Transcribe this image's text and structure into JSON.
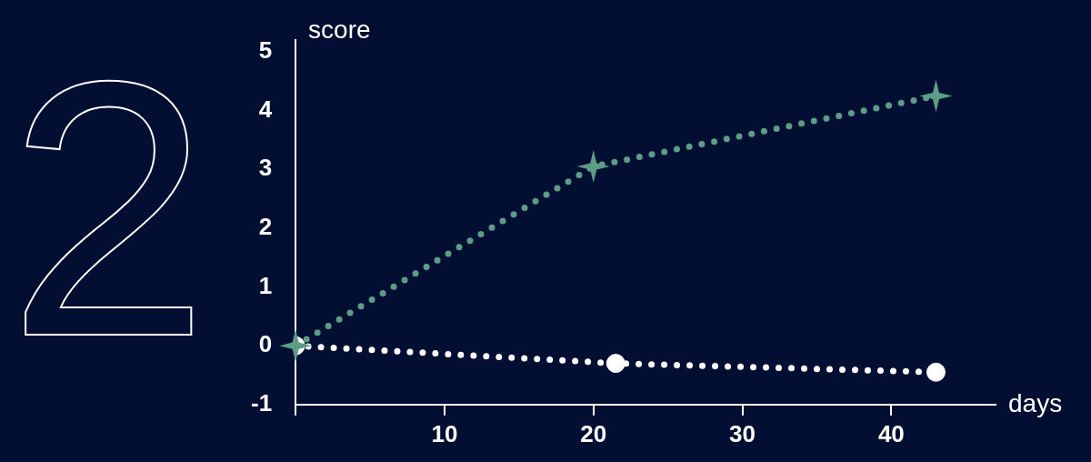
{
  "chart_data": {
    "type": "line",
    "xlabel": "days",
    "ylabel": "score",
    "annotations": [
      "2"
    ],
    "xlim": [
      0,
      47
    ],
    "ylim": [
      -1,
      5.2
    ],
    "xticks": [
      {
        "value": 0,
        "label": null
      },
      10,
      20,
      30,
      40
    ],
    "yticks": [
      -1,
      0,
      1,
      2,
      3,
      4,
      5
    ],
    "grid": false,
    "legend": false,
    "line_style": "dotted",
    "series": [
      {
        "color": "#5c9e85",
        "marker": "star",
        "x": [
          0,
          20,
          43
        ],
        "values": [
          0,
          3.05,
          4.25
        ]
      },
      {
        "color": "#ffffff",
        "marker": "circle",
        "x": [
          0,
          21.5,
          43
        ],
        "values": [
          0,
          -0.3,
          -0.45
        ]
      }
    ]
  }
}
